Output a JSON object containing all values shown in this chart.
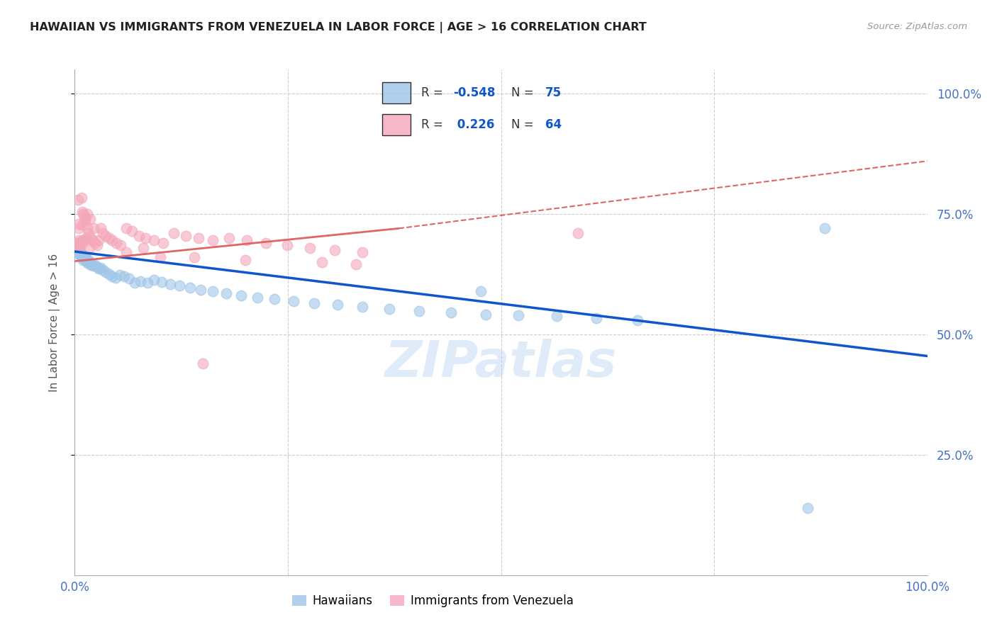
{
  "title": "HAWAIIAN VS IMMIGRANTS FROM VENEZUELA IN LABOR FORCE | AGE > 16 CORRELATION CHART",
  "source": "Source: ZipAtlas.com",
  "ylabel": "In Labor Force | Age > 16",
  "legend_label1": "Hawaiians",
  "legend_label2": "Immigrants from Venezuela",
  "R1": -0.548,
  "N1": 75,
  "R2": 0.226,
  "N2": 64,
  "blue_color": "#9fc5e8",
  "pink_color": "#f4a7b9",
  "blue_line_color": "#1155cc",
  "pink_line_color": "#e06666",
  "axis_label_color": "#4472c4",
  "text_color_dark": "#222222",
  "ytick_labels": [
    "100.0%",
    "75.0%",
    "50.0%",
    "25.0%"
  ],
  "ytick_values": [
    1.0,
    0.75,
    0.5,
    0.25
  ],
  "blue_x": [
    0.002,
    0.003,
    0.004,
    0.004,
    0.005,
    0.005,
    0.005,
    0.006,
    0.006,
    0.007,
    0.007,
    0.007,
    0.008,
    0.008,
    0.009,
    0.009,
    0.01,
    0.01,
    0.01,
    0.011,
    0.011,
    0.012,
    0.012,
    0.013,
    0.013,
    0.014,
    0.015,
    0.015,
    0.016,
    0.017,
    0.018,
    0.019,
    0.02,
    0.022,
    0.024,
    0.026,
    0.028,
    0.03,
    0.033,
    0.036,
    0.04,
    0.044,
    0.048,
    0.053,
    0.058,
    0.064,
    0.07,
    0.077,
    0.085,
    0.093,
    0.102,
    0.112,
    0.123,
    0.135,
    0.148,
    0.162,
    0.178,
    0.195,
    0.214,
    0.234,
    0.257,
    0.281,
    0.308,
    0.337,
    0.369,
    0.404,
    0.441,
    0.482,
    0.476,
    0.52,
    0.565,
    0.612,
    0.66,
    0.86,
    0.88
  ],
  "blue_y": [
    0.68,
    0.678,
    0.676,
    0.673,
    0.675,
    0.671,
    0.667,
    0.67,
    0.666,
    0.669,
    0.665,
    0.661,
    0.668,
    0.664,
    0.665,
    0.661,
    0.663,
    0.659,
    0.655,
    0.662,
    0.658,
    0.66,
    0.656,
    0.658,
    0.654,
    0.655,
    0.652,
    0.648,
    0.654,
    0.65,
    0.648,
    0.644,
    0.646,
    0.642,
    0.644,
    0.64,
    0.636,
    0.638,
    0.634,
    0.63,
    0.625,
    0.621,
    0.617,
    0.624,
    0.62,
    0.616,
    0.608,
    0.61,
    0.607,
    0.613,
    0.609,
    0.605,
    0.601,
    0.597,
    0.593,
    0.589,
    0.585,
    0.581,
    0.577,
    0.573,
    0.569,
    0.565,
    0.561,
    0.557,
    0.553,
    0.549,
    0.545,
    0.541,
    0.59,
    0.54,
    0.538,
    0.534,
    0.53,
    0.14,
    0.72
  ],
  "pink_x": [
    0.002,
    0.003,
    0.004,
    0.004,
    0.005,
    0.005,
    0.005,
    0.006,
    0.007,
    0.007,
    0.008,
    0.009,
    0.009,
    0.01,
    0.01,
    0.011,
    0.012,
    0.012,
    0.013,
    0.014,
    0.015,
    0.015,
    0.016,
    0.017,
    0.018,
    0.019,
    0.021,
    0.022,
    0.024,
    0.026,
    0.028,
    0.03,
    0.033,
    0.036,
    0.04,
    0.044,
    0.049,
    0.054,
    0.06,
    0.067,
    0.075,
    0.083,
    0.093,
    0.104,
    0.116,
    0.13,
    0.145,
    0.162,
    0.181,
    0.202,
    0.224,
    0.249,
    0.276,
    0.305,
    0.337,
    0.08,
    0.14,
    0.2,
    0.29,
    0.33,
    0.15,
    0.1,
    0.59,
    0.06
  ],
  "pink_y": [
    0.682,
    0.69,
    0.685,
    0.78,
    0.73,
    0.72,
    0.695,
    0.688,
    0.692,
    0.686,
    0.784,
    0.755,
    0.728,
    0.695,
    0.75,
    0.745,
    0.74,
    0.735,
    0.7,
    0.695,
    0.72,
    0.75,
    0.71,
    0.68,
    0.74,
    0.7,
    0.695,
    0.72,
    0.69,
    0.685,
    0.695,
    0.72,
    0.71,
    0.705,
    0.7,
    0.695,
    0.69,
    0.685,
    0.72,
    0.715,
    0.705,
    0.7,
    0.695,
    0.69,
    0.71,
    0.705,
    0.7,
    0.695,
    0.7,
    0.695,
    0.69,
    0.685,
    0.68,
    0.675,
    0.67,
    0.68,
    0.66,
    0.655,
    0.65,
    0.645,
    0.44,
    0.66,
    0.71,
    0.67
  ],
  "blue_trend": [
    0.0,
    0.672,
    1.0,
    0.455
  ],
  "pink_trend_solid": [
    0.0,
    0.652,
    0.38,
    0.72
  ],
  "pink_trend_dashed": [
    0.38,
    0.72,
    1.0,
    0.86
  ],
  "xlim": [
    0.0,
    1.0
  ],
  "ylim": [
    0.0,
    1.05
  ]
}
